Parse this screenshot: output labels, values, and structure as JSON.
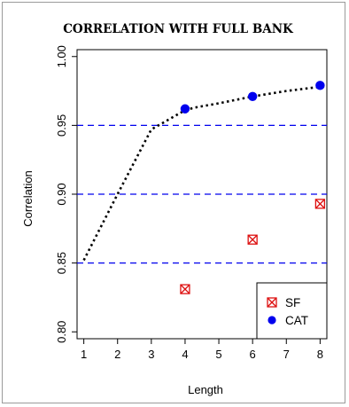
{
  "chart_data": {
    "type": "line",
    "title": "CORRELATION WITH FULL BANK",
    "xlabel": "Length",
    "ylabel": "Correlation",
    "xlim": [
      0.8,
      8.2
    ],
    "ylim": [
      0.795,
      1.005
    ],
    "x_ticks": [
      1,
      2,
      3,
      4,
      5,
      6,
      7,
      8
    ],
    "y_ticks": [
      0.8,
      0.85,
      0.9,
      0.95,
      1.0
    ],
    "reference_lines": [
      0.85,
      0.9,
      0.95
    ],
    "reference_line_color": "#0000ee",
    "curve": {
      "style": "dotted",
      "color": "#000000",
      "x": [
        1,
        2,
        3,
        4,
        4.3,
        5,
        6,
        7,
        8
      ],
      "y": [
        0.852,
        0.9,
        0.947,
        0.961,
        0.963,
        0.966,
        0.971,
        0.975,
        0.978
      ]
    },
    "series": [
      {
        "name": "SF",
        "marker": "boxed-x",
        "color": "#dd1111",
        "x": [
          4,
          6,
          8
        ],
        "y": [
          0.831,
          0.867,
          0.893
        ]
      },
      {
        "name": "CAT",
        "marker": "filled-circle",
        "color": "#0000ee",
        "x": [
          4,
          6,
          8
        ],
        "y": [
          0.962,
          0.971,
          0.979
        ]
      }
    ],
    "legend": {
      "position": "bottom-right",
      "entries": [
        "SF",
        "CAT"
      ]
    },
    "grid": false
  }
}
